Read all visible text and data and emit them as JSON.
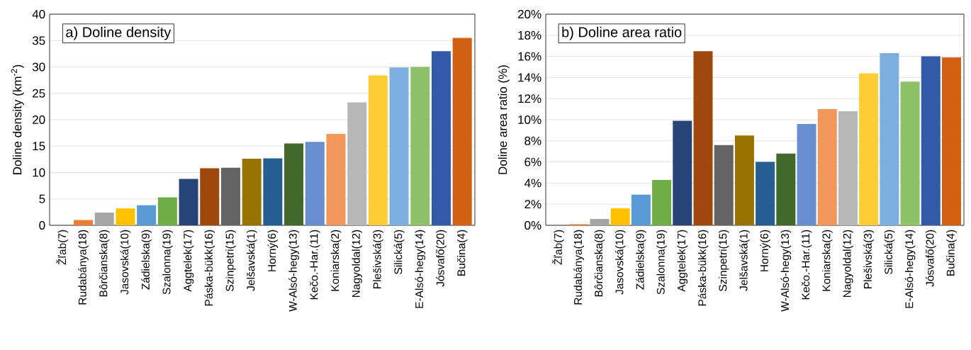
{
  "chart_data": [
    {
      "type": "bar",
      "title": "a) Doline density",
      "ylabel": "Doline density (km$^{-2}$)",
      "categories": [
        "Žľab(7)",
        "Rudabánya(18)",
        "Bôrčianska(8)",
        "Jasovská(10)",
        "Zádielska(9)",
        "Szalonna(19)",
        "Aggtelek(17)",
        "Páska-bükk(16)",
        "Szinpetri(15)",
        "Jelšavská(1)",
        "Horný(6)",
        "W-Alsó-hegy(13)",
        "Kečo.-Har.(11)",
        "Koniarska(2)",
        "Nagyoldal(12)",
        "Plešivská(3)",
        "Silická(5)",
        "E-Alsó-hegy(14)",
        "Jósvafő(20)",
        "Bučina(4)"
      ],
      "values": [
        0,
        1.0,
        2.4,
        3.2,
        3.8,
        5.3,
        8.8,
        10.8,
        10.9,
        12.6,
        12.7,
        15.5,
        15.8,
        17.3,
        23.3,
        28.4,
        29.9,
        30.0,
        33.0,
        35.5
      ],
      "colors": [
        "#4472c4",
        "#ed7d31",
        "#a5a5a5",
        "#ffc000",
        "#5b9bd5",
        "#70ad47",
        "#264478",
        "#9e480e",
        "#636363",
        "#997300",
        "#255e91",
        "#43682b",
        "#698ed0",
        "#f1975a",
        "#b7b7b7",
        "#ffcd33",
        "#7cafdd",
        "#8cc168",
        "#335aa6",
        "#d26012"
      ],
      "ylim": [
        0,
        40
      ],
      "yticks": [
        0,
        5,
        10,
        15,
        20,
        25,
        30,
        35,
        40
      ],
      "grid": "y"
    },
    {
      "type": "bar",
      "title": "b) Doline area ratio",
      "ylabel": "Doline area ratio (%)",
      "categories": [
        "Žľab(7)",
        "Rudabánya(18)",
        "Bôrčianska(8)",
        "Jasovská(10)",
        "Zádielska(9)",
        "Szalonna(19)",
        "Aggtelek(17)",
        "Páska-bükk(16)",
        "Szinpetri(15)",
        "Jelšavská(1)",
        "Horný(6)",
        "W-Alsó-hegy(13)",
        "Kečo.-Har.(11)",
        "Koniarska(2)",
        "Nagyoldal(12)",
        "Plešivská(3)",
        "Silická(5)",
        "E-Alsó-hegy(14)",
        "Jósvafő(20)",
        "Bučina(4)"
      ],
      "values": [
        0,
        0.1,
        0.6,
        1.6,
        2.9,
        4.3,
        9.9,
        16.5,
        7.6,
        8.5,
        6.0,
        6.8,
        9.6,
        11.0,
        10.8,
        14.4,
        16.3,
        13.6,
        16.0,
        15.9
      ],
      "colors": [
        "#4472c4",
        "#ed7d31",
        "#a5a5a5",
        "#ffc000",
        "#5b9bd5",
        "#70ad47",
        "#264478",
        "#9e480e",
        "#636363",
        "#997300",
        "#255e91",
        "#43682b",
        "#698ed0",
        "#f1975a",
        "#b7b7b7",
        "#ffcd33",
        "#7cafdd",
        "#8cc168",
        "#335aa6",
        "#d26012"
      ],
      "ylim": [
        0,
        20
      ],
      "yticks": [
        {
          "value": 0,
          "label": "0%"
        },
        {
          "value": 2,
          "label": "2%"
        },
        {
          "value": 4,
          "label": "4%"
        },
        {
          "value": 6,
          "label": "6%"
        },
        {
          "value": 8,
          "label": "8%"
        },
        {
          "value": 10,
          "label": "10%"
        },
        {
          "value": 12,
          "label": "12%"
        },
        {
          "value": 14,
          "label": "14%"
        },
        {
          "value": 16,
          "label": "16%"
        },
        {
          "value": 18,
          "label": "18%"
        },
        {
          "value": 20,
          "label": "20%"
        }
      ],
      "grid": "y"
    }
  ]
}
